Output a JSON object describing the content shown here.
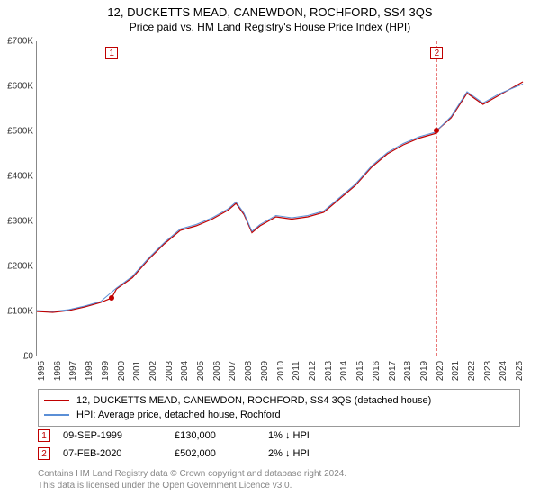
{
  "title": "12, DUCKETTS MEAD, CANEWDON, ROCHFORD, SS4 3QS",
  "subtitle": "Price paid vs. HM Land Registry's House Price Index (HPI)",
  "chart": {
    "type": "line",
    "background_color": "#ffffff",
    "grid_color": "#e8e8e8",
    "axis_color": "#888888",
    "ylim": [
      0,
      700000
    ],
    "ytick_step": 100000,
    "ytick_labels": [
      "£0",
      "£100K",
      "£200K",
      "£300K",
      "£400K",
      "£500K",
      "£600K",
      "£700K"
    ],
    "xlim": [
      1995,
      2025.5
    ],
    "xtick_step": 1,
    "xtick_labels": [
      "1995",
      "1996",
      "1997",
      "1998",
      "1999",
      "2000",
      "2001",
      "2002",
      "2003",
      "2004",
      "2005",
      "2006",
      "2007",
      "2008",
      "2009",
      "2010",
      "2011",
      "2012",
      "2013",
      "2014",
      "2015",
      "2016",
      "2017",
      "2018",
      "2019",
      "2020",
      "2021",
      "2022",
      "2023",
      "2024",
      "2025"
    ],
    "series": [
      {
        "name": "price_paid",
        "label": "12, DUCKETTS MEAD, CANEWDON, ROCHFORD, SS4 3QS (detached house)",
        "color": "#c00000",
        "line_width": 1.2,
        "x": [
          1995,
          1996,
          1997,
          1998,
          1999,
          1999.7,
          2000,
          2001,
          2002,
          2003,
          2004,
          2005,
          2006,
          2007,
          2007.5,
          2008,
          2008.5,
          2009,
          2010,
          2011,
          2012,
          2013,
          2014,
          2015,
          2016,
          2017,
          2018,
          2019,
          2020,
          2020.1,
          2021,
          2022,
          2023,
          2024,
          2025,
          2025.5
        ],
        "y": [
          100000,
          98000,
          102000,
          110000,
          120000,
          130000,
          150000,
          175000,
          215000,
          250000,
          280000,
          290000,
          305000,
          325000,
          340000,
          315000,
          275000,
          290000,
          310000,
          305000,
          310000,
          320000,
          350000,
          380000,
          420000,
          450000,
          470000,
          485000,
          495000,
          502000,
          530000,
          585000,
          560000,
          580000,
          600000,
          610000
        ]
      },
      {
        "name": "hpi",
        "label": "HPI: Average price, detached house, Rochford",
        "color": "#5b8fd6",
        "line_width": 1.0,
        "x": [
          1995,
          1996,
          1997,
          1998,
          1999,
          2000,
          2001,
          2002,
          2003,
          2004,
          2005,
          2006,
          2007,
          2007.5,
          2008,
          2008.5,
          2009,
          2010,
          2011,
          2012,
          2013,
          2014,
          2015,
          2016,
          2017,
          2018,
          2019,
          2020,
          2021,
          2022,
          2023,
          2024,
          2025,
          2025.5
        ],
        "y": [
          102000,
          100000,
          104000,
          112000,
          122000,
          152000,
          178000,
          218000,
          253000,
          283000,
          293000,
          308000,
          328000,
          343000,
          318000,
          278000,
          293000,
          313000,
          308000,
          313000,
          323000,
          353000,
          383000,
          423000,
          453000,
          473000,
          488000,
          498000,
          533000,
          588000,
          563000,
          583000,
          598000,
          605000
        ]
      }
    ],
    "markers": [
      {
        "label": "1",
        "x": 1999.7,
        "y": 130000
      },
      {
        "label": "2",
        "x": 2020.1,
        "y": 502000
      }
    ]
  },
  "legend": {
    "items": [
      {
        "color": "#c00000",
        "label": "12, DUCKETTS MEAD, CANEWDON, ROCHFORD, SS4 3QS (detached house)"
      },
      {
        "color": "#5b8fd6",
        "label": "HPI: Average price, detached house, Rochford"
      }
    ]
  },
  "transactions": [
    {
      "num": "1",
      "date": "09-SEP-1999",
      "price": "£130,000",
      "pct": "1% ↓ HPI"
    },
    {
      "num": "2",
      "date": "07-FEB-2020",
      "price": "£502,000",
      "pct": "2% ↓ HPI"
    }
  ],
  "footer": {
    "line1": "Contains HM Land Registry data © Crown copyright and database right 2024.",
    "line2": "This data is licensed under the Open Government Licence v3.0."
  },
  "colors": {
    "text": "#000000",
    "muted": "#888888",
    "marker_border": "#c00000"
  }
}
